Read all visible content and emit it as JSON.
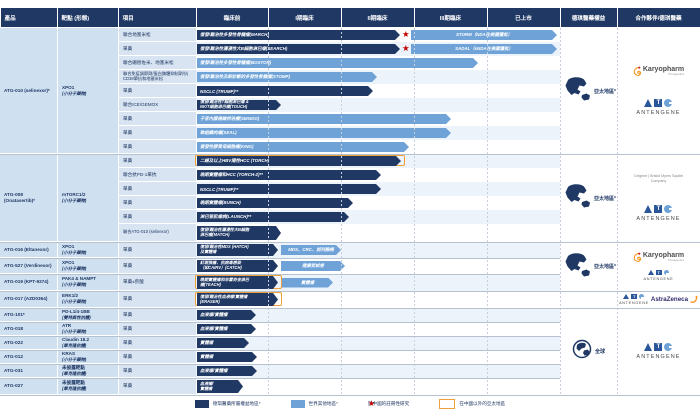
{
  "header": {
    "cols": [
      "產品",
      "靶點 (形態)",
      "項目",
      "臨床前",
      "I期臨床",
      "II期臨床",
      "III期臨床",
      "已上市",
      "德琪醫藥權益",
      "合作夥伴/德琪醫藥"
    ]
  },
  "colors": {
    "navy": "#1F3864",
    "light_blue": "#6FA3D8",
    "highlight_orange": "#EE9F37",
    "star_red": "#C00000",
    "cell_bg": "#CFE0F1",
    "project_bg": "#D8E4F2",
    "row_alt": "#EDF3FA"
  },
  "groups": [
    {
      "product": "ATG-010 (selinexor)*",
      "target": "XPO1",
      "form": "(小分子藥物)",
      "from": 0,
      "to": 8
    },
    {
      "product": "ATG-008 (Onatasertib)*",
      "target": "mTORC1/2",
      "form": "(小分子藥物)",
      "from": 9,
      "to": 14
    },
    {
      "product": "ATG-016 (Eltanexor)",
      "target": "XPO1",
      "form": "(小分子藥物)",
      "from": 15,
      "to": 15
    },
    {
      "product": "ATG-527 (Verdinexor)",
      "target": "XPO1",
      "form": "(小分子藥物)",
      "from": 16,
      "to": 16
    },
    {
      "product": "ATG-019 (KPT-9274)",
      "target": "PAK4 & NAMPT",
      "form": "(小分子藥物)",
      "from": 17,
      "to": 17
    },
    {
      "product": "ATG-017 (AZD0364)",
      "target": "ERK1/2",
      "form": "(小分子藥物)",
      "from": 18,
      "to": 18
    },
    {
      "product": "ATG-101*",
      "target": "PD-L1/4-1BB",
      "form": "(雙特異性抗體)",
      "from": 19,
      "to": 19
    },
    {
      "product": "ATG-018",
      "target": "ATR",
      "form": "(小分子藥物)",
      "from": 20,
      "to": 20
    },
    {
      "product": "ATG-022",
      "target": "Claudin 18.2",
      "form": "(單克隆抗體)",
      "from": 21,
      "to": 21
    },
    {
      "product": "ATG-012",
      "target": "KRAS",
      "form": "(小分子藥物)",
      "from": 22,
      "to": 22
    },
    {
      "product": "ATG-031",
      "target": "未披露靶點",
      "form": "(單克隆抗體)",
      "from": 23,
      "to": 23
    },
    {
      "product": "ATG-027",
      "target": "未披露靶點",
      "form": "(單克隆抗體)",
      "from": 24,
      "to": 24
    }
  ],
  "rows": [
    {
      "project": "聯合地塞米松",
      "h": 14,
      "bars": [
        {
          "style": "dark",
          "text": "復發/難治性多發性骨髓瘤(MARCH)",
          "start": 197,
          "end": 400,
          "star": true
        },
        {
          "style": "light",
          "text": "STORM（NDA在美國獲批）",
          "start": 411,
          "end": 557,
          "center": true
        }
      ]
    },
    {
      "project": "單藥",
      "h": 14,
      "bars": [
        {
          "style": "dark",
          "text": "復發/難治性瀰漫性大B細胞淋巴瘤(SEARCH)",
          "start": 197,
          "end": 400,
          "star": true
        },
        {
          "style": "light",
          "text": "SADAL（sNDA在美國獲批）",
          "start": 411,
          "end": 557,
          "center": true
        }
      ]
    },
    {
      "project": "聯合硼替佐米、地塞米松",
      "h": 14,
      "bars": [
        {
          "style": "light",
          "text": "復發/難治性多發性骨髓瘤(BOSTON)",
          "start": 197,
          "end": 478
        }
      ]
    },
    {
      "project": "聯合免疫調節劑/蛋白酶體抑制劑/抗CD38單抗和地塞米松",
      "h": 14,
      "bars": [
        {
          "style": "light",
          "text": "復發/難治性及新診斷的多發性骨髓瘤(STOMP)",
          "start": 197,
          "end": 377
        }
      ]
    },
    {
      "project": "單藥",
      "h": 14,
      "bars": [
        {
          "style": "dark",
          "text": "NSCLC (TRUMP)**",
          "start": 197,
          "end": 373
        }
      ]
    },
    {
      "project": "聯合ICE/GEMOX",
      "h": 14,
      "bars": [
        {
          "style": "dark",
          "text": "復發/難治性T細胞淋巴瘤 &\nNK/T細胞淋巴瘤(TOUCH)",
          "start": 197,
          "end": 281,
          "two_line": true
        }
      ]
    },
    {
      "project": "單藥",
      "h": 14,
      "bars": [
        {
          "style": "light",
          "text": "子宮內膜癌維持治療(SIENDO)",
          "start": 197,
          "end": 451
        }
      ]
    },
    {
      "project": "單藥",
      "h": 14,
      "bars": [
        {
          "style": "light",
          "text": "軟組織肉瘤(SEAL)",
          "start": 197,
          "end": 451
        }
      ]
    },
    {
      "project": "單藥",
      "h": 14,
      "bars": [
        {
          "style": "light",
          "text": "復發性膠質母細胞瘤(KING)",
          "start": 197,
          "end": 409
        }
      ]
    },
    {
      "project": "單藥",
      "h": 14,
      "bars": [
        {
          "style": "dark",
          "text": "二線及以上HBV陽性HCC (TORCH)",
          "start": 197,
          "end": 401,
          "highlight": true
        }
      ]
    },
    {
      "project": "聯合抗PD-1單抗",
      "h": 14,
      "bars": [
        {
          "style": "dark",
          "text": "晚期實體瘤和HCC (TORCH-2)**",
          "start": 197,
          "end": 381
        }
      ]
    },
    {
      "project": "單藥",
      "h": 14,
      "bars": [
        {
          "style": "dark",
          "text": "NSCLC (TRUMP)**",
          "start": 197,
          "end": 381
        }
      ]
    },
    {
      "project": "單藥",
      "h": 14,
      "bars": [
        {
          "style": "dark",
          "text": "晚期實體瘤(BUNCH)",
          "start": 197,
          "end": 353
        }
      ]
    },
    {
      "project": "單藥",
      "h": 14,
      "bars": [
        {
          "style": "dark",
          "text": "淋巴管肌瘤病(LAUNCH)**",
          "start": 197,
          "end": 349
        }
      ]
    },
    {
      "project": "聯合ATG-010 (selinexor)",
      "h": 18,
      "bars": [
        {
          "style": "dark",
          "text": "復發/難治性瀰漫性大B細胞\n淋巴瘤(MATCH)",
          "start": 197,
          "end": 281,
          "two_line": true
        }
      ]
    },
    {
      "project": "單藥",
      "h": 16,
      "bars": [
        {
          "style": "dark",
          "text": "復發/難治性MDS (HATCH)\n及實體瘤",
          "start": 197,
          "end": 278,
          "two_line": true
        },
        {
          "style": "light",
          "text": "MDS、CRC、前列腺癌",
          "start": 281,
          "end": 341,
          "center": true
        }
      ]
    },
    {
      "project": "單藥",
      "h": 16,
      "bars": [
        {
          "style": "dark",
          "text": "紅斑狼瘡、抗病毒感染\n（如CAIRV）(CATCH)",
          "start": 197,
          "end": 278,
          "two_line": true
        },
        {
          "style": "light",
          "text": "健康受試者",
          "start": 281,
          "end": 345,
          "center": true
        }
      ]
    },
    {
      "project": "單藥±菸酸",
      "h": 17,
      "bars": [
        {
          "style": "dark",
          "text": "晚期實體瘤和非霍奇金淋巴\n瘤(TEACH)",
          "start": 197,
          "end": 278,
          "two_line": true,
          "highlight": true
        },
        {
          "style": "light",
          "text": "實體瘤",
          "start": 282,
          "end": 333,
          "center": true
        }
      ]
    },
    {
      "project": "單藥",
      "h": 17,
      "bars": [
        {
          "style": "dark",
          "text": "復發/難治性血液瘤/實體瘤\n(ERASER)",
          "start": 197,
          "end": 278,
          "two_line": true,
          "highlight": true
        }
      ]
    },
    {
      "project": "單藥",
      "h": 14,
      "bars": [
        {
          "style": "dark",
          "text": "血液瘤/實體瘤",
          "start": 197,
          "end": 256
        }
      ]
    },
    {
      "project": "單藥",
      "h": 14,
      "bars": [
        {
          "style": "dark",
          "text": "血液瘤/實體瘤",
          "start": 197,
          "end": 256
        }
      ]
    },
    {
      "project": "單藥",
      "h": 14,
      "bars": [
        {
          "style": "dark",
          "text": "實體瘤",
          "start": 197,
          "end": 249
        }
      ]
    },
    {
      "project": "單藥",
      "h": 14,
      "bars": [
        {
          "style": "dark",
          "text": "實體瘤",
          "start": 197,
          "end": 257
        }
      ]
    },
    {
      "project": "單藥",
      "h": 14,
      "bars": [
        {
          "style": "dark",
          "text": "血液瘤/實體瘤",
          "start": 197,
          "end": 257
        }
      ]
    },
    {
      "project": "單藥",
      "h": 17,
      "bars": [
        {
          "style": "dark",
          "text": "血液瘤/\n實體瘤",
          "start": 197,
          "end": 243,
          "two_line": true
        }
      ]
    }
  ],
  "right_groups": [
    {
      "from": 0,
      "to": 8,
      "globe": "apac",
      "label": "亞太地區*",
      "partners": [
        "karyopharm",
        "antengene_lg"
      ]
    },
    {
      "from": 9,
      "to": 14,
      "globe": "apac",
      "label": "亞太地區*",
      "partners": [
        "celgene_bms",
        "antengene_lg"
      ]
    },
    {
      "from": 15,
      "to": 17,
      "globe": "apac",
      "label": "亞太地區*",
      "partners": [
        "karyopharm",
        "antengene_sm"
      ]
    },
    {
      "from": 18,
      "to": 18,
      "globe": "none",
      "label": "",
      "partners": [
        "atg_az"
      ]
    },
    {
      "from": 19,
      "to": 24,
      "globe": "world",
      "label": "全球",
      "partners": [
        "antengene_lg"
      ]
    }
  ],
  "logos": {
    "karyopharm": {
      "name": "Karyopharm",
      "sub": "Therapeutics"
    },
    "antengene": {
      "wordmark": "ANTENGENE",
      "t_glyph": "T"
    },
    "celgene_bms": {
      "line1": "Celgene | Bristol Myers Squibb",
      "line2": "Company"
    },
    "astrazeneca": {
      "name": "AstraZeneca"
    }
  },
  "legend": [
    {
      "swatch": "dark",
      "label": "德琪醫藥所屬權益地區*"
    },
    {
      "swatch": "light",
      "label": "世界其他地區*"
    },
    {
      "swatch": "star",
      "label": "於中國的註冊性研究"
    },
    {
      "swatch": "outline",
      "label": "在中國以外的亞太地區"
    }
  ],
  "legend_star_glyph": "★"
}
